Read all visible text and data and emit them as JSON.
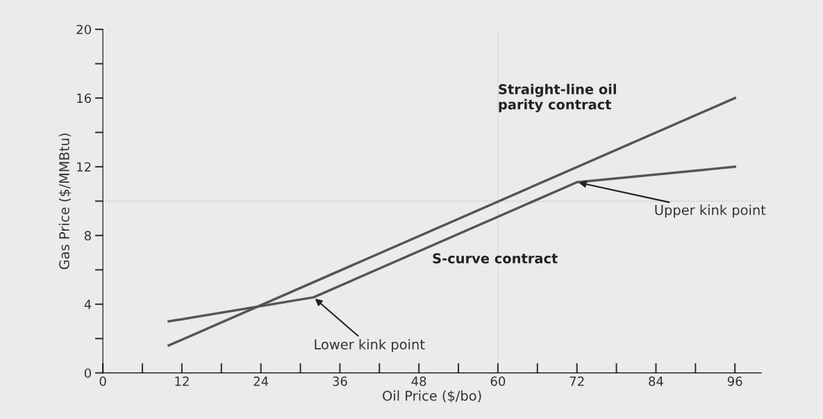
{
  "chart_data": {
    "type": "line",
    "xlabel": "Oil Price ($/bo)",
    "ylabel": "Gas Price ($/MMBtu)",
    "xlim": [
      0,
      100
    ],
    "ylim": [
      0,
      20
    ],
    "xticks": [
      0,
      {
        "value": 6,
        "label": null
      },
      12,
      {
        "value": 18,
        "label": null
      },
      24,
      {
        "value": 30,
        "label": null
      },
      36,
      {
        "value": 42,
        "label": null
      },
      48,
      {
        "value": 54,
        "label": null
      },
      60,
      {
        "value": 66,
        "label": null
      },
      72,
      {
        "value": 78,
        "label": null
      },
      84,
      {
        "value": 90,
        "label": null
      },
      96
    ],
    "yticks": [
      0,
      {
        "value": 2,
        "label": null
      },
      4,
      {
        "value": 6,
        "label": null
      },
      8,
      {
        "value": 10,
        "label": null
      },
      12,
      {
        "value": 14,
        "label": null
      },
      16,
      {
        "value": 18,
        "label": null
      },
      20
    ],
    "series": [
      {
        "color": "#555555",
        "x": [
          10,
          96
        ],
        "values": [
          1.6,
          16
        ]
      },
      {
        "color": "#555555",
        "x": [
          10,
          32,
          72,
          96
        ],
        "values": [
          3.0,
          4.4,
          11.1,
          12
        ]
      }
    ],
    "ref_lines": [
      {
        "axis": "y",
        "value": 10,
        "color": "#bbbbbb",
        "line_style": "dotted"
      },
      {
        "axis": "x",
        "value": 60,
        "color": "#bbbbbb",
        "line_style": "dotted"
      }
    ],
    "annotations": [
      "Straight-line oil\nparity contract",
      "S-curve contract",
      {
        "text": "Lower kink point",
        "x": 32,
        "y": 4.4
      },
      {
        "text": "Upper kink point",
        "x": 72,
        "y": 11.1
      }
    ],
    "grid": false,
    "legend": false,
    "marker": "none",
    "line_style": "solid"
  }
}
